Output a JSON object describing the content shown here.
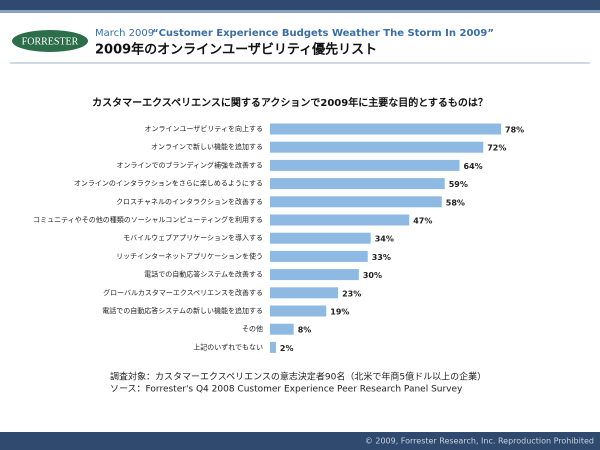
{
  "header": {
    "logo": "FORRESTER",
    "date": "March 2009",
    "report": "“Customer Experience Budgets Weather The Storm In 2009”",
    "title": "2009年のオンラインユーザビリティ優先リスト"
  },
  "chart_data": {
    "type": "bar",
    "title": "カスタマーエクスペリエンスに関するアクションで2009年に主要な目的とするものは？",
    "categories": [
      "オンラインユーザビリティを向上する",
      "オンラインで新しい機能を追加する",
      "オンラインでのブランディング補強を改善する",
      "オンラインのインタラクションをさらに楽しめるようにする",
      "クロスチャネルのインタラクションを改善する",
      "コミュニティやその他の種類のソーシャルコンピューティングを利用する",
      "モバイルウェブアプリケーションを導入する",
      "リッチインターネットアプリケーションを使う",
      "電話での自動応答システムを改善する",
      "グローバルカスタマーエクスペリエンスを改善する",
      "電話での自動応答システムの新しい機能を追加する",
      "その他",
      "上記のいずれでもない"
    ],
    "values": [
      78,
      72,
      64,
      59,
      58,
      47,
      34,
      33,
      30,
      23,
      19,
      8,
      2
    ],
    "value_labels": [
      "78%",
      "72%",
      "64%",
      "59%",
      "58%",
      "47%",
      "34%",
      "33%",
      "30%",
      "23%",
      "19%",
      "8%",
      "2%"
    ],
    "color": "#8db9e3"
  },
  "notes": [
    "調査対象：カスタマーエクスペリエンスの意志決定者90名（北米で年商5億ドル以上の企業）",
    "ソース：Forrester's Q4 2008 Customer Experience Peer Research Panel Survey"
  ],
  "footer": "© 2009, Forrester Research, Inc. Reproduction Prohibited"
}
